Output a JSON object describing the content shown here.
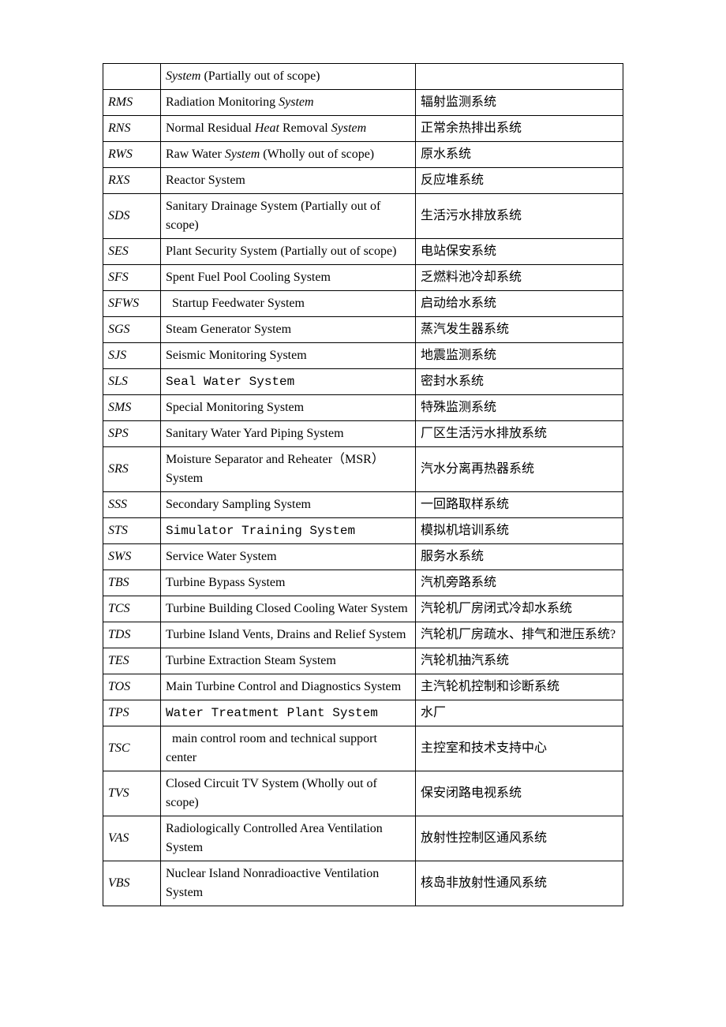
{
  "rows": [
    {
      "code": "",
      "codeItalic": false,
      "desc_html": "<i>System</i> (Partially out of scope)",
      "cn": ""
    },
    {
      "code": "RMS",
      "codeItalic": false,
      "desc_html": "Radiation Monitoring <i>System</i>",
      "cn": "辐射监测系统"
    },
    {
      "code": "RNS",
      "codeItalic": true,
      "desc_html": "Normal Residual <i>Heat</i> Removal <i>System</i>",
      "cn": "正常余热排出系统"
    },
    {
      "code": "RWS",
      "codeItalic": true,
      "desc_html": "Raw Water <i>System</i> (Wholly out of scope)",
      "cn": "原水系统"
    },
    {
      "code": "RXS",
      "codeItalic": true,
      "desc_html": "Reactor System",
      "cn": "反应堆系统"
    },
    {
      "code": "SDS",
      "codeItalic": true,
      "desc_html": "Sanitary Drainage System (Partially out of scope)",
      "cn": "生活污水排放系统"
    },
    {
      "code": "SES",
      "codeItalic": true,
      "desc_html": "Plant Security System (Partially out of scope)",
      "cn": "电站保安系统"
    },
    {
      "code": "SFS",
      "codeItalic": true,
      "desc_html": "Spent Fuel Pool Cooling System",
      "cn": "乏燃料池冷却系统"
    },
    {
      "code": "SFWS",
      "codeItalic": true,
      "desc_html": "&nbsp;&nbsp;Startup Feedwater System",
      "cn": "启动给水系统"
    },
    {
      "code": "SGS",
      "codeItalic": true,
      "desc_html": "Steam Generator System",
      "cn": "蒸汽发生器系统"
    },
    {
      "code": "SJS",
      "codeItalic": true,
      "desc_html": "Seismic Monitoring System",
      "cn": "地震监测系统"
    },
    {
      "code": "SLS",
      "codeItalic": true,
      "desc_html": "<span class=\"courier\">Seal Water System</span>",
      "cn": "密封水系统"
    },
    {
      "code": "SMS",
      "codeItalic": true,
      "desc_html": "Special Monitoring System",
      "cn": "特殊监测系统"
    },
    {
      "code": "SPS",
      "codeItalic": true,
      "desc_html": "Sanitary Water Yard Piping System",
      "cn": "厂区生活污水排放系统"
    },
    {
      "code": "SRS",
      "codeItalic": true,
      "desc_html": "Moisture Separator and Reheater（MSR）System",
      "cn": "汽水分离再热器系统"
    },
    {
      "code": "SSS",
      "codeItalic": true,
      "desc_html": "Secondary Sampling System",
      "cn": "一回路取样系统"
    },
    {
      "code": "STS",
      "codeItalic": true,
      "desc_html": "<span class=\"courier\">Simulator Training System</span>",
      "cn": "模拟机培训系统"
    },
    {
      "code": "SWS",
      "codeItalic": true,
      "desc_html": "Service Water System",
      "cn": "服务水系统"
    },
    {
      "code": "TBS",
      "codeItalic": true,
      "desc_html": "Turbine Bypass System",
      "cn": "汽机旁路系统"
    },
    {
      "code": "TCS",
      "codeItalic": true,
      "desc_html": "Turbine Building Closed Cooling Water System",
      "cn": "汽轮机厂房闭式冷却水系统"
    },
    {
      "code": "TDS",
      "codeItalic": true,
      "desc_html": "Turbine Island Vents, Drains and Relief System",
      "cn": "汽轮机厂房疏水、排气和泄压系统?"
    },
    {
      "code": "TES",
      "codeItalic": true,
      "desc_html": "Turbine Extraction Steam System",
      "cn": "汽轮机抽汽系统"
    },
    {
      "code": "TOS",
      "codeItalic": true,
      "desc_html": "Main Turbine Control and Diagnostics System",
      "cn": "主汽轮机控制和诊断系统"
    },
    {
      "code": "TPS",
      "codeItalic": false,
      "desc_html": "<span class=\"courier\">Water Treatment Plant System</span>",
      "cn": "水厂"
    },
    {
      "code": "TSC",
      "codeItalic": true,
      "desc_html": "&nbsp;&nbsp;main control room and technical support center",
      "cn": "主控室和技术支持中心"
    },
    {
      "code": "TVS",
      "codeItalic": true,
      "desc_html": "Closed Circuit TV System (Wholly out of scope)",
      "cn": "保安闭路电视系统"
    },
    {
      "code": "VAS",
      "codeItalic": true,
      "desc_html": "Radiologically Controlled Area Ventilation System",
      "cn": "放射性控制区通风系统"
    },
    {
      "code": "VBS",
      "codeItalic": true,
      "desc_html": "Nuclear Island Nonradioactive Ventilation System",
      "cn": "核岛非放射性通风系统"
    }
  ]
}
